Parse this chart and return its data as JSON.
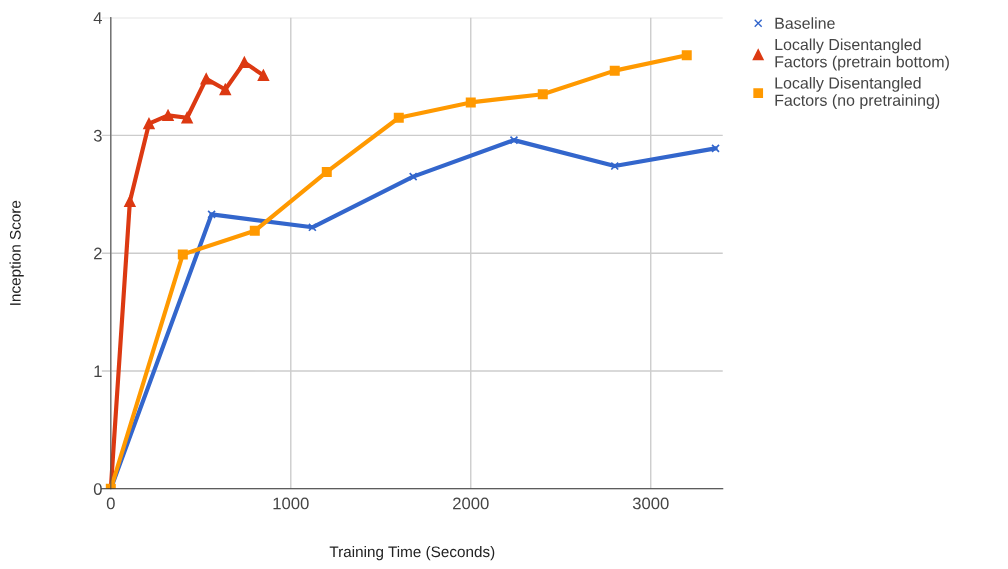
{
  "chart_data": {
    "type": "line",
    "xlabel": "Training Time (Seconds)",
    "ylabel": "Inception Score",
    "xlim": [
      -50,
      3400
    ],
    "xticks": [
      0,
      1000,
      2000,
      3000
    ],
    "ylim": [
      0,
      4
    ],
    "yticks": [
      0,
      1,
      2,
      3,
      4
    ],
    "grid": true,
    "legend": "right",
    "series": [
      {
        "name": "Baseline",
        "color": "#3366cc",
        "marker": "cross",
        "x": [
          0,
          560,
          1120,
          1680,
          2240,
          2800,
          3360
        ],
        "values": [
          0,
          2.33,
          2.22,
          2.65,
          2.96,
          2.74,
          2.89
        ]
      },
      {
        "name": "Locally Disentangled Factors (pretrain bottom)",
        "color": "#dc3912",
        "marker": "triangle",
        "x": [
          0,
          106,
          212,
          318,
          424,
          530,
          636,
          742,
          848
        ],
        "values": [
          0,
          2.44,
          3.1,
          3.17,
          3.15,
          3.48,
          3.39,
          3.62,
          3.51
        ]
      },
      {
        "name": "Locally Disentangled Factors (no pretraining)",
        "color": "#ff9900",
        "marker": "square",
        "x": [
          0,
          400,
          800,
          1200,
          1600,
          2000,
          2400,
          2800,
          3200
        ],
        "values": [
          0,
          1.99,
          2.19,
          2.69,
          3.15,
          3.28,
          3.35,
          3.55,
          3.68
        ]
      }
    ]
  }
}
